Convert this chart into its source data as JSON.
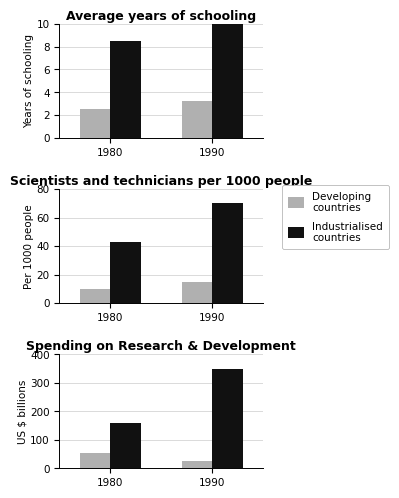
{
  "chart1": {
    "title": "Average years of schooling",
    "ylabel": "Years of schooling",
    "ylim": [
      0,
      10
    ],
    "yticks": [
      0,
      2,
      4,
      6,
      8,
      10
    ],
    "years": [
      "1980",
      "1990"
    ],
    "developing": [
      2.5,
      3.2
    ],
    "industrialised": [
      8.5,
      10.5
    ]
  },
  "chart2": {
    "title": "Scientists and technicians per 1000 people",
    "ylabel": "Per 1000 people",
    "ylim": [
      0,
      80
    ],
    "yticks": [
      0,
      20,
      40,
      60,
      80
    ],
    "years": [
      "1980",
      "1990"
    ],
    "developing": [
      10,
      15
    ],
    "industrialised": [
      43,
      70
    ]
  },
  "chart3": {
    "title": "Spending on Research & Development",
    "ylabel": "US $ billions",
    "ylim": [
      0,
      400
    ],
    "yticks": [
      0,
      100,
      200,
      300,
      400
    ],
    "years": [
      "1980",
      "1990"
    ],
    "developing": [
      55,
      25
    ],
    "industrialised": [
      160,
      350
    ]
  },
  "developing_color": "#b0b0b0",
  "industrialised_color": "#111111",
  "bar_width": 0.3,
  "legend_labels": [
    "Developing\ncountries",
    "Industrialised\ncountries"
  ],
  "background_color": "#ffffff",
  "title_fontsize": 9,
  "label_fontsize": 7.5,
  "tick_fontsize": 7.5
}
